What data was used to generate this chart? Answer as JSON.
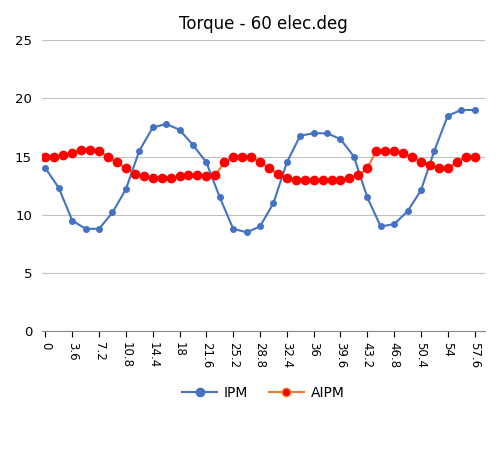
{
  "title": "Torque - 60 elec.deg",
  "x_labels": [
    "0",
    "3.6",
    "7.2",
    "10.8",
    "14.4",
    "18",
    "21.6",
    "25.2",
    "28.8",
    "32.4",
    "36",
    "39.6",
    "43.2",
    "46.8",
    "50.4",
    "54",
    "57.6"
  ],
  "x_ticks": [
    0,
    3.6,
    7.2,
    10.8,
    14.4,
    18,
    21.6,
    25.2,
    28.8,
    32.4,
    36,
    39.6,
    43.2,
    46.8,
    50.4,
    54,
    57.6
  ],
  "ipm_x": [
    0,
    1.8,
    3.6,
    5.4,
    7.2,
    9.0,
    10.8,
    12.6,
    14.4,
    16.2,
    18.0,
    19.8,
    21.6,
    23.4,
    25.2,
    27.0,
    28.8,
    30.6,
    32.4,
    34.2,
    36.0,
    37.8,
    39.6,
    41.4,
    43.2,
    45.0,
    46.8,
    48.6,
    50.4,
    52.2,
    54.0,
    55.8,
    57.6
  ],
  "ipm_y": [
    14.0,
    12.3,
    9.5,
    8.8,
    8.8,
    10.2,
    12.2,
    15.5,
    17.5,
    17.8,
    17.3,
    16.0,
    14.5,
    11.5,
    8.8,
    8.5,
    9.0,
    11.0,
    14.5,
    16.8,
    17.0,
    17.0,
    16.5,
    15.0,
    11.5,
    9.0,
    9.2,
    10.3,
    12.1,
    15.5,
    18.5,
    19.0,
    19.0
  ],
  "aipm_x": [
    0,
    1.2,
    2.4,
    3.6,
    4.8,
    6.0,
    7.2,
    8.4,
    9.6,
    10.8,
    12.0,
    13.2,
    14.4,
    15.6,
    16.8,
    18.0,
    19.2,
    20.4,
    21.6,
    22.8,
    24.0,
    25.2,
    26.4,
    27.6,
    28.8,
    30.0,
    31.2,
    32.4,
    33.6,
    34.8,
    36.0,
    37.2,
    38.4,
    39.6,
    40.8,
    42.0,
    43.2,
    44.4,
    45.6,
    46.8,
    48.0,
    49.2,
    50.4,
    51.6,
    52.8,
    54.0,
    55.2,
    56.4,
    57.6
  ],
  "aipm_y": [
    15.0,
    15.0,
    15.1,
    15.3,
    15.6,
    15.6,
    15.5,
    15.0,
    14.5,
    14.0,
    13.5,
    13.3,
    13.2,
    13.2,
    13.2,
    13.3,
    13.4,
    13.4,
    13.3,
    13.4,
    14.5,
    15.0,
    15.0,
    15.0,
    14.5,
    14.0,
    13.5,
    13.2,
    13.0,
    13.0,
    13.0,
    13.0,
    13.0,
    13.0,
    13.2,
    13.4,
    14.0,
    15.5,
    15.5,
    15.5,
    15.3,
    15.0,
    14.5,
    14.3,
    14.0,
    14.0,
    14.5,
    15.0,
    15.0
  ],
  "ipm_color": "#4472C4",
  "aipm_line_color": "#ED7D31",
  "aipm_dot_color": "#FF0000",
  "ylim": [
    0,
    25
  ],
  "yticks": [
    0,
    5,
    10,
    15,
    20,
    25
  ],
  "grid_color": "#C0C0C0",
  "background_color": "#FFFFFF"
}
